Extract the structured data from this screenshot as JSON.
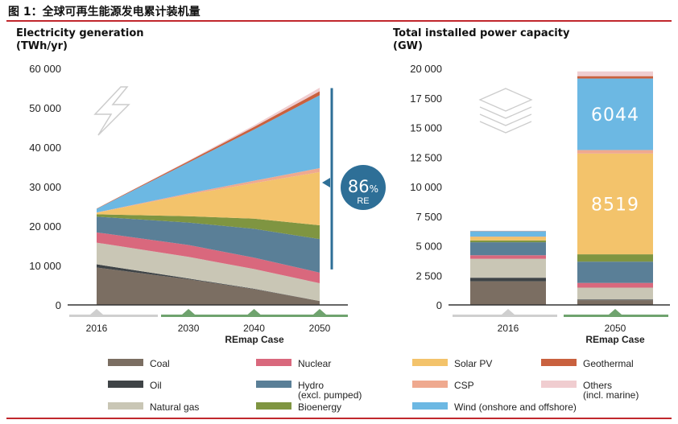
{
  "figure_title": "图 1：全球可再生能源发电累计装机量",
  "chart_data": [
    {
      "type": "area",
      "title": "Electricity generation",
      "unit_label": "(TWh/yr)",
      "x": [
        "2016",
        "2030",
        "2040",
        "2050"
      ],
      "x_positions": [
        2016,
        2030,
        2040,
        2050
      ],
      "xlabel": "REmap Case",
      "ylim": [
        0,
        60000
      ],
      "yticks": [
        "60 000",
        "50 000",
        "40 000",
        "30 000",
        "20 000",
        "10 000",
        "0"
      ],
      "ytick_values": [
        60000,
        50000,
        40000,
        30000,
        20000,
        10000,
        0
      ],
      "series": [
        {
          "name": "Coal",
          "values": [
            9500,
            6500,
            4000,
            1000
          ]
        },
        {
          "name": "Oil",
          "values": [
            800,
            200,
            100,
            0
          ]
        },
        {
          "name": "Natural gas",
          "values": [
            5500,
            5500,
            5000,
            4500
          ]
        },
        {
          "name": "Nuclear",
          "values": [
            2600,
            3000,
            2900,
            2700
          ]
        },
        {
          "name": "Hydro (excl. pumped)",
          "values": [
            4000,
            5700,
            7300,
            8500
          ]
        },
        {
          "name": "Bioenergy",
          "values": [
            600,
            1600,
            2600,
            3500
          ]
        },
        {
          "name": "Solar PV",
          "values": [
            400,
            5500,
            9000,
            13500
          ]
        },
        {
          "name": "CSP",
          "values": [
            50,
            300,
            600,
            1000
          ]
        },
        {
          "name": "Wind (onshore and offshore)",
          "values": [
            900,
            7800,
            13000,
            18500
          ]
        },
        {
          "name": "Geothermal",
          "values": [
            100,
            350,
            650,
            1000
          ]
        },
        {
          "name": "Others (incl. marine)",
          "values": [
            0,
            150,
            400,
            900
          ]
        }
      ],
      "annotation": {
        "value": "86",
        "unit": "%",
        "label": "RE",
        "range": [
          9000,
          55000
        ]
      }
    },
    {
      "type": "bar",
      "title": "Total installed power capacity",
      "unit_label": "(GW)",
      "categories": [
        "2016",
        "2050"
      ],
      "xlabel": "REmap Case",
      "ylim": [
        0,
        20000
      ],
      "yticks": [
        "20 000",
        "17 500",
        "15 000",
        "12 500",
        "10 000",
        "7 500",
        "5 000",
        "2 500",
        "0"
      ],
      "ytick_values": [
        20000,
        17500,
        15000,
        12500,
        10000,
        7500,
        5000,
        2500,
        0
      ],
      "series": [
        {
          "name": "Coal",
          "values": [
            2000,
            400
          ]
        },
        {
          "name": "Oil",
          "values": [
            300,
            60
          ]
        },
        {
          "name": "Natural gas",
          "values": [
            1600,
            1000
          ]
        },
        {
          "name": "Nuclear",
          "values": [
            300,
            400
          ]
        },
        {
          "name": "Hydro (excl. pumped)",
          "values": [
            1100,
            1800
          ]
        },
        {
          "name": "Bioenergy",
          "values": [
            150,
            620
          ]
        },
        {
          "name": "Solar PV",
          "values": [
            300,
            8519
          ]
        },
        {
          "name": "CSP",
          "values": [
            30,
            300
          ]
        },
        {
          "name": "Wind (onshore and offshore)",
          "values": [
            450,
            6044
          ]
        },
        {
          "name": "Geothermal",
          "values": [
            20,
            200
          ]
        },
        {
          "name": "Others (incl. marine)",
          "values": [
            20,
            400
          ]
        }
      ],
      "bar_labels": [
        {
          "series": "Solar PV",
          "category": "2050",
          "text": "8519"
        },
        {
          "series": "Wind (onshore and offshore)",
          "category": "2050",
          "text": "6044"
        }
      ]
    }
  ],
  "legend": [
    {
      "key": "coal",
      "lines": [
        "Coal"
      ],
      "color": "#7b6e62"
    },
    {
      "key": "nuclear",
      "lines": [
        "Nuclear"
      ],
      "color": "#d9687d"
    },
    {
      "key": "solar",
      "lines": [
        "Solar PV"
      ],
      "color": "#f3c36b"
    },
    {
      "key": "geothermal",
      "lines": [
        "Geothermal"
      ],
      "color": "#c9613f"
    },
    {
      "key": "oil",
      "lines": [
        "Oil"
      ],
      "color": "#3f4447"
    },
    {
      "key": "hydro",
      "lines": [
        "Hydro",
        "(excl. pumped)"
      ],
      "color": "#5a7f97"
    },
    {
      "key": "csp",
      "lines": [
        "CSP"
      ],
      "color": "#efa98f"
    },
    {
      "key": "others",
      "lines": [
        "Others",
        "(incl. marine)"
      ],
      "color": "#f0cdd0"
    },
    {
      "key": "gas",
      "lines": [
        "Natural gas"
      ],
      "color": "#c9c6b5"
    },
    {
      "key": "bio",
      "lines": [
        "Bioenergy"
      ],
      "color": "#7f9541"
    },
    {
      "key": "wind",
      "lines": [
        "Wind (onshore and offshore)"
      ],
      "color": "#6cb8e3"
    }
  ],
  "colors": {
    "accent_red": "#c1272d",
    "axis": "#333333",
    "annotation_blue": "#2e6f97",
    "axis_band_grey": "#cfcfcf",
    "axis_band_green": "#6fa36e"
  }
}
